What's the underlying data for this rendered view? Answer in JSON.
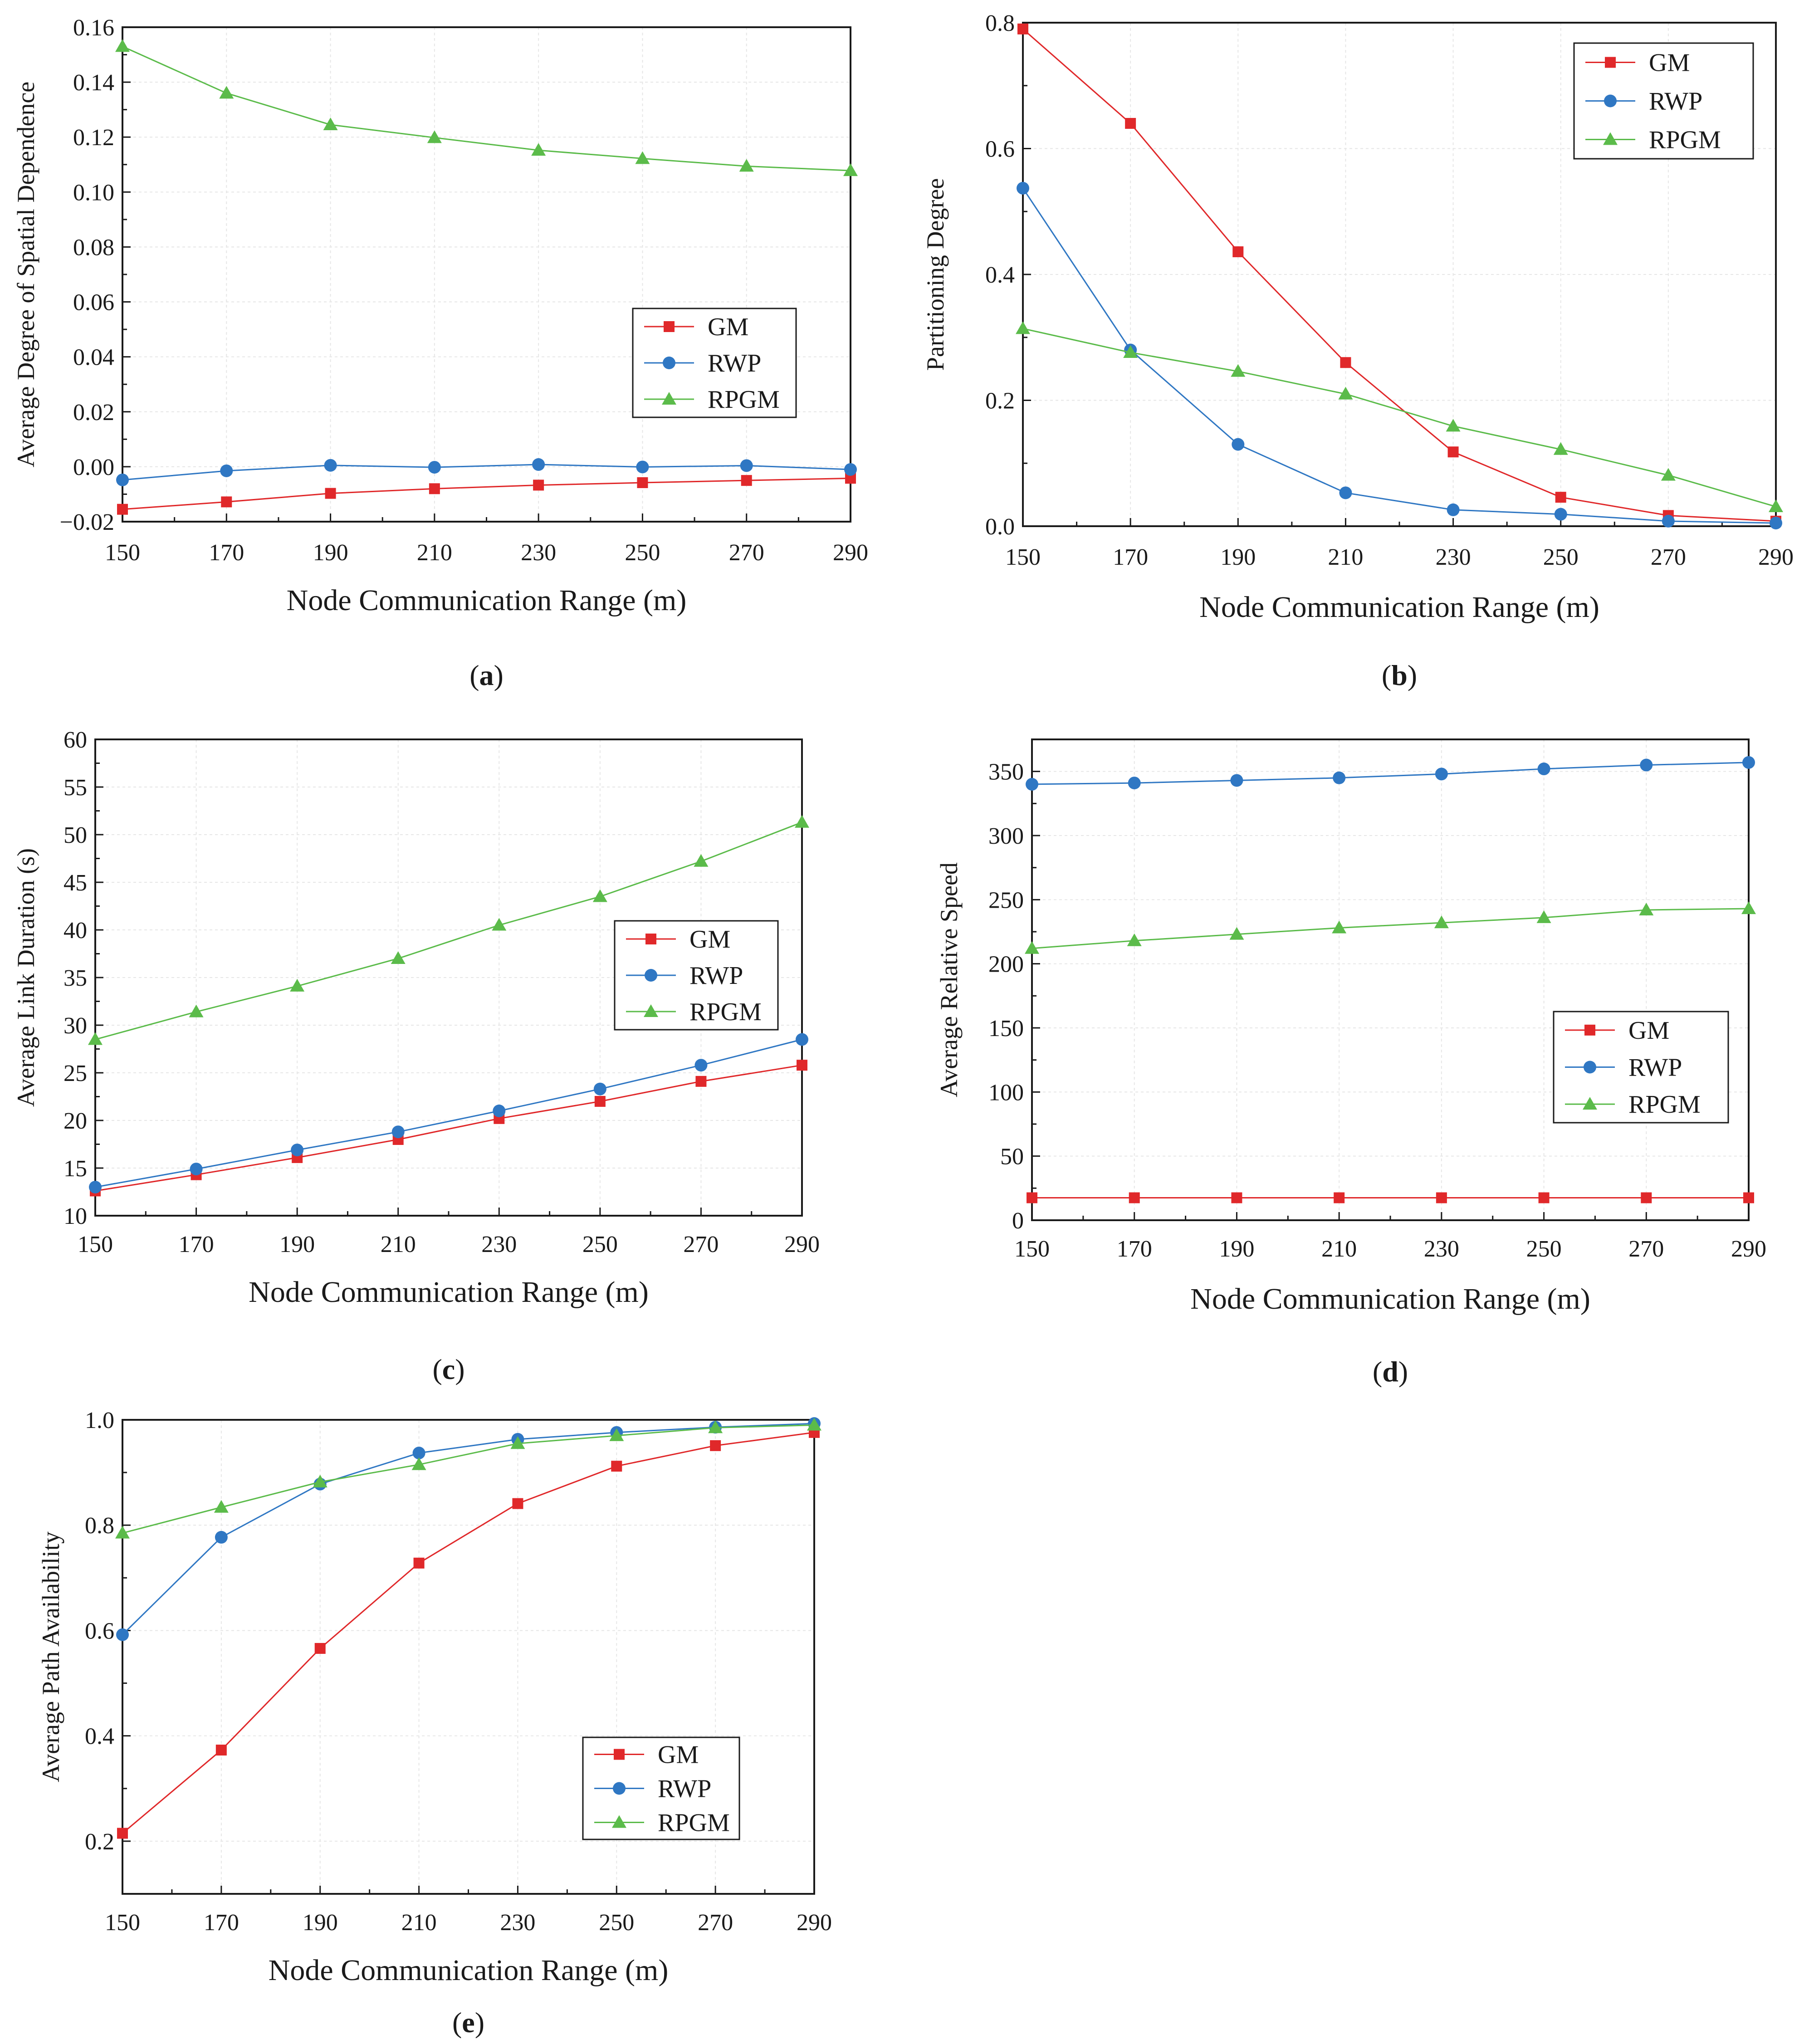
{
  "colors": {
    "GM": "#e0282a",
    "RWP": "#2f77c3",
    "RPGM": "#5bbb4a"
  },
  "chart_data": [
    {
      "id": "a",
      "type": "line",
      "caption_letter": "a",
      "xlabel": "Node Communication Range (m)",
      "ylabel": "Average Degree of Spatial Dependence",
      "x": [
        150,
        170,
        190,
        210,
        230,
        250,
        270,
        290
      ],
      "xlim": [
        150,
        290
      ],
      "ylim": [
        -0.02,
        0.16
      ],
      "yticks": [
        -0.02,
        0.0,
        0.02,
        0.04,
        0.06,
        0.08,
        0.1,
        0.12,
        0.14,
        0.16
      ],
      "ytick_labels": [
        "−0.02",
        "0.00",
        "0.02",
        "0.04",
        "0.06",
        "0.08",
        "0.10",
        "0.12",
        "0.14",
        "0.16"
      ],
      "legend_position": "middle-right",
      "series": [
        {
          "name": "GM",
          "values": [
            -0.0155,
            -0.0128,
            -0.0097,
            -0.008,
            -0.0067,
            -0.0058,
            -0.005,
            -0.0042
          ]
        },
        {
          "name": "RWP",
          "values": [
            -0.0048,
            -0.0015,
            0.0005,
            -0.0002,
            0.0008,
            -0.0001,
            0.0004,
            -0.001
          ]
        },
        {
          "name": "RPGM",
          "values": [
            0.153,
            0.136,
            0.1245,
            0.1198,
            0.1152,
            0.1122,
            0.1094,
            0.1078
          ]
        }
      ]
    },
    {
      "id": "b",
      "type": "line",
      "caption_letter": "b",
      "xlabel": "Node Communication Range (m)",
      "ylabel": "Partitioning Degree",
      "x": [
        150,
        170,
        190,
        210,
        230,
        250,
        270,
        290
      ],
      "xlim": [
        150,
        290
      ],
      "ylim": [
        0,
        0.8
      ],
      "yticks": [
        0.0,
        0.2,
        0.4,
        0.6,
        0.8
      ],
      "ytick_labels": [
        "0.0",
        "0.2",
        "0.4",
        "0.6",
        "0.8"
      ],
      "legend_position": "top-right",
      "series": [
        {
          "name": "GM",
          "values": [
            0.79,
            0.64,
            0.436,
            0.26,
            0.118,
            0.046,
            0.017,
            0.008
          ]
        },
        {
          "name": "RWP",
          "values": [
            0.537,
            0.28,
            0.13,
            0.053,
            0.026,
            0.019,
            0.008,
            0.005
          ]
        },
        {
          "name": "RPGM",
          "values": [
            0.314,
            0.276,
            0.246,
            0.21,
            0.159,
            0.122,
            0.081,
            0.031
          ]
        }
      ]
    },
    {
      "id": "c",
      "type": "line",
      "caption_letter": "c",
      "xlabel": "Node Communication Range (m)",
      "ylabel": "Average Link Duration (s)",
      "x": [
        150,
        170,
        190,
        210,
        230,
        250,
        270,
        290
      ],
      "xlim": [
        150,
        290
      ],
      "ylim": [
        10,
        60
      ],
      "yticks": [
        10,
        15,
        20,
        25,
        30,
        35,
        40,
        45,
        50,
        55,
        60
      ],
      "ytick_labels": [
        "10",
        "15",
        "20",
        "25",
        "30",
        "35",
        "40",
        "45",
        "50",
        "55",
        "60"
      ],
      "legend_position": "middle-right",
      "series": [
        {
          "name": "GM",
          "values": [
            12.6,
            14.3,
            16.1,
            18.0,
            20.2,
            22.0,
            24.1,
            25.8
          ]
        },
        {
          "name": "RWP",
          "values": [
            13.0,
            14.9,
            16.9,
            18.8,
            21.0,
            23.3,
            25.8,
            28.5
          ]
        },
        {
          "name": "RPGM",
          "values": [
            28.5,
            31.4,
            34.1,
            37.0,
            40.5,
            43.5,
            47.2,
            51.3
          ]
        }
      ]
    },
    {
      "id": "d",
      "type": "line",
      "caption_letter": "d",
      "xlabel": "Node Communication Range (m)",
      "ylabel": "Average Relative Speed",
      "x": [
        150,
        170,
        190,
        210,
        230,
        250,
        270,
        290
      ],
      "xlim": [
        150,
        290
      ],
      "ylim": [
        0,
        375
      ],
      "yticks": [
        0,
        50,
        100,
        150,
        200,
        250,
        300,
        350
      ],
      "ytick_labels": [
        "0",
        "50",
        "100",
        "150",
        "200",
        "250",
        "300",
        "350"
      ],
      "legend_position": "right",
      "series": [
        {
          "name": "GM",
          "values": [
            17.5,
            17.5,
            17.5,
            17.5,
            17.5,
            17.5,
            17.5,
            17.5
          ]
        },
        {
          "name": "RWP",
          "values": [
            340,
            341,
            343,
            345,
            348,
            352,
            355,
            357
          ]
        },
        {
          "name": "RPGM",
          "values": [
            212,
            218,
            223,
            228,
            232,
            236,
            242,
            243
          ]
        }
      ]
    },
    {
      "id": "e",
      "type": "line",
      "caption_letter": "e",
      "xlabel": "Node Communication Range (m)",
      "ylabel": "Average Path Availability",
      "x": [
        150,
        170,
        190,
        210,
        230,
        250,
        270,
        290
      ],
      "xlim": [
        150,
        290
      ],
      "ylim": [
        0.1,
        1.0
      ],
      "yticks": [
        0.2,
        0.4,
        0.6,
        0.8,
        1.0
      ],
      "ytick_labels": [
        "0.2",
        "0.4",
        "0.6",
        "0.8",
        "1.0"
      ],
      "legend_position": "bottom-right",
      "series": [
        {
          "name": "GM",
          "values": [
            0.215,
            0.373,
            0.566,
            0.728,
            0.841,
            0.912,
            0.951,
            0.976
          ]
        },
        {
          "name": "RWP",
          "values": [
            0.592,
            0.777,
            0.878,
            0.937,
            0.963,
            0.976,
            0.986,
            0.993
          ]
        },
        {
          "name": "RPGM",
          "values": [
            0.785,
            0.834,
            0.882,
            0.915,
            0.955,
            0.97,
            0.985,
            0.99
          ]
        }
      ]
    }
  ]
}
